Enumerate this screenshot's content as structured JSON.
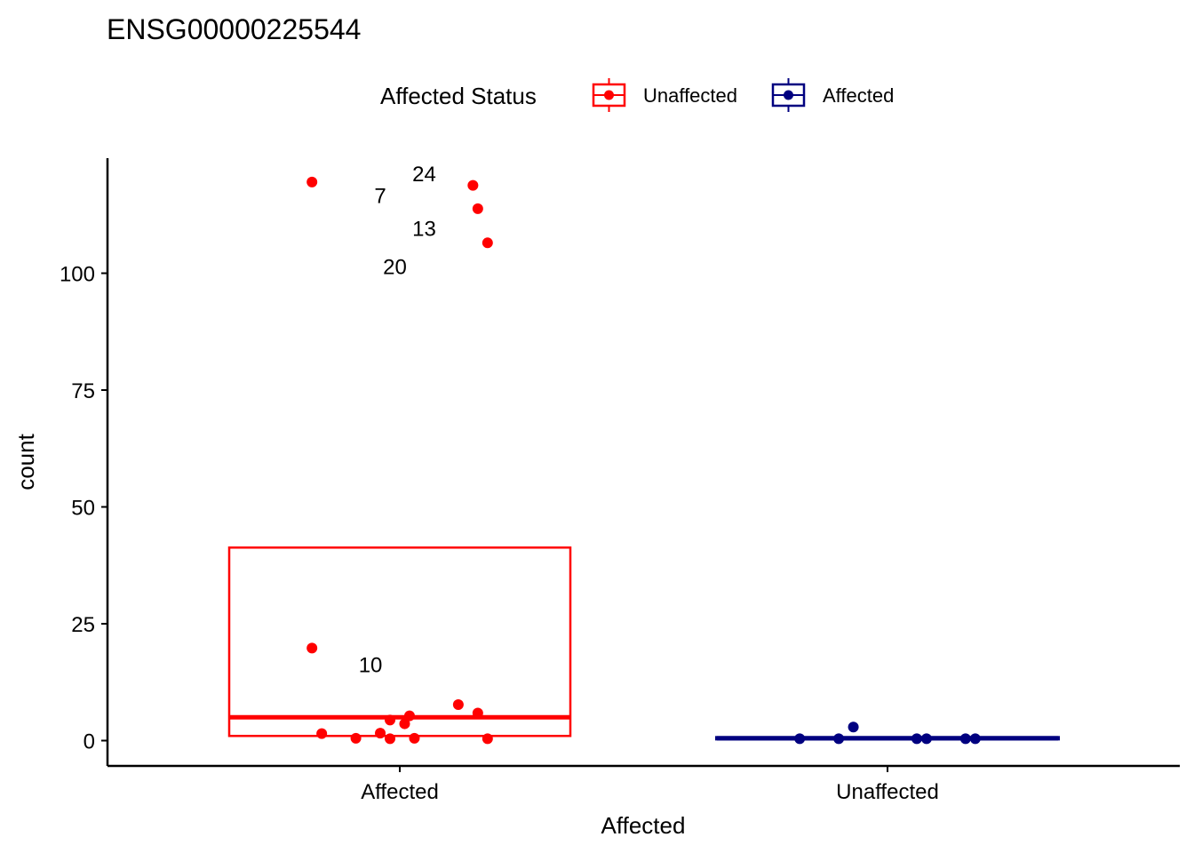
{
  "chart_data": {
    "type": "box",
    "title": "ENSG00000225544",
    "xlabel": "Affected",
    "ylabel": "count",
    "categories": [
      "Affected",
      "Unaffected"
    ],
    "ylim": [
      -5,
      125
    ],
    "yticks": [
      0,
      25,
      50,
      75,
      100
    ],
    "legend": {
      "title": "Affected Status",
      "position": "top",
      "entries": [
        {
          "name": "Unaffected",
          "color": "#ff0000"
        },
        {
          "name": "Affected",
          "color": "#000080"
        }
      ]
    },
    "series": [
      {
        "name": "Unaffected",
        "category": "Affected",
        "color": "#ff0000",
        "box": {
          "q1": 1,
          "median": 5,
          "q3": 41.3
        },
        "points": [
          {
            "x": -0.18,
            "y": 119.5
          },
          {
            "x": 0.15,
            "y": 118.8
          },
          {
            "x": 0.16,
            "y": 113.8
          },
          {
            "x": 0.18,
            "y": 106.5
          },
          {
            "x": -0.18,
            "y": 19.8
          },
          {
            "x": 0.12,
            "y": 7.7
          },
          {
            "x": 0.16,
            "y": 5.9
          },
          {
            "x": 0.02,
            "y": 5.3
          },
          {
            "x": -0.02,
            "y": 4.4
          },
          {
            "x": 0.01,
            "y": 3.6
          },
          {
            "x": -0.16,
            "y": 1.5
          },
          {
            "x": -0.04,
            "y": 1.6
          },
          {
            "x": -0.09,
            "y": 0.5
          },
          {
            "x": -0.02,
            "y": 0.4
          },
          {
            "x": 0.03,
            "y": 0.5
          },
          {
            "x": 0.18,
            "y": 0.4
          }
        ],
        "labels": [
          {
            "text": "24",
            "x": 0.05,
            "y": 121.2
          },
          {
            "text": "7",
            "x": -0.04,
            "y": 116.5
          },
          {
            "text": "13",
            "x": 0.05,
            "y": 109.5
          },
          {
            "text": "20",
            "x": -0.01,
            "y": 101.3
          },
          {
            "text": "10",
            "x": -0.06,
            "y": 16.2
          }
        ]
      },
      {
        "name": "Affected",
        "category": "Unaffected",
        "color": "#000080",
        "box": {
          "q1": 0.5,
          "median": 0.5,
          "q3": 0.6
        },
        "points": [
          {
            "x": -0.18,
            "y": 0.4
          },
          {
            "x": -0.1,
            "y": 0.4
          },
          {
            "x": -0.07,
            "y": 2.9
          },
          {
            "x": 0.06,
            "y": 0.4
          },
          {
            "x": 0.08,
            "y": 0.4
          },
          {
            "x": 0.16,
            "y": 0.4
          },
          {
            "x": 0.18,
            "y": 0.4
          }
        ],
        "labels": []
      }
    ]
  }
}
